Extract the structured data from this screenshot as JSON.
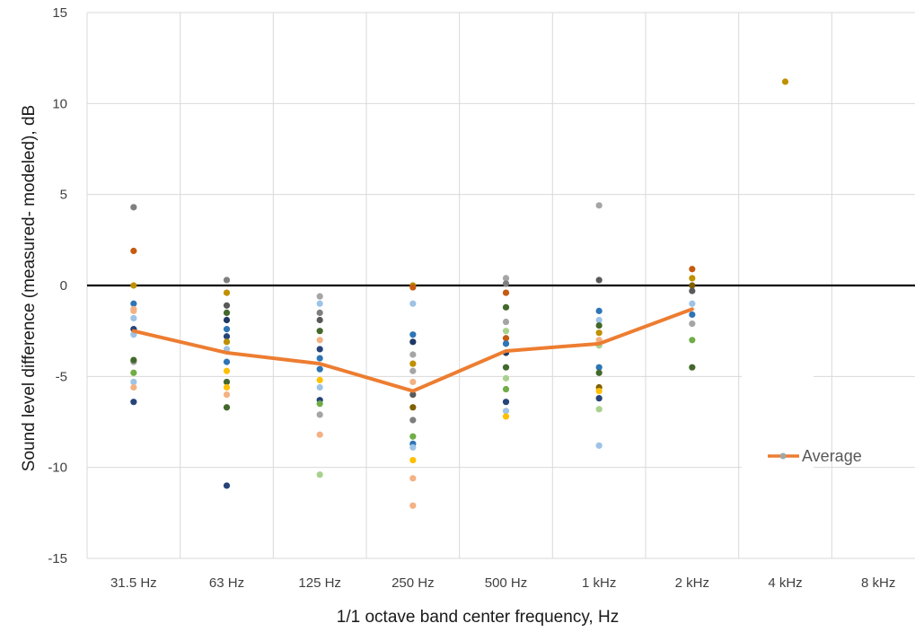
{
  "chart_data": {
    "type": "scatter",
    "xlabel": "1/1 octave band center frequency, Hz",
    "ylabel": "Sound level difference (measured- modeled), dB",
    "ylim": [
      -15,
      15
    ],
    "yticks": [
      "-15",
      "-10",
      "-5",
      "0",
      "5",
      "10",
      "15"
    ],
    "categories": [
      "31.5 Hz",
      "63 Hz",
      "125 Hz",
      "250 Hz",
      "500 Hz",
      "1 kHz",
      "2 kHz",
      "4 kHz",
      "8 kHz"
    ],
    "grid": true,
    "zero_line": true,
    "legend_position": "right",
    "average": {
      "name": "Average",
      "color": "#ED7D31",
      "values": [
        -2.5,
        -3.7,
        -4.3,
        -5.8,
        -3.6,
        -3.2,
        -1.3,
        null,
        null
      ]
    },
    "points": [
      {
        "x": "31.5 Hz",
        "y": 4.3,
        "color": "#7F7F7F"
      },
      {
        "x": "31.5 Hz",
        "y": 1.9,
        "color": "#C55A11"
      },
      {
        "x": "31.5 Hz",
        "y": 0.0,
        "color": "#BF9000"
      },
      {
        "x": "31.5 Hz",
        "y": -1.0,
        "color": "#2E75B6"
      },
      {
        "x": "31.5 Hz",
        "y": -1.3,
        "color": "#F4B183"
      },
      {
        "x": "31.5 Hz",
        "y": -1.4,
        "color": "#F4B183"
      },
      {
        "x": "31.5 Hz",
        "y": -1.8,
        "color": "#9DC3E6"
      },
      {
        "x": "31.5 Hz",
        "y": -2.4,
        "color": "#264478"
      },
      {
        "x": "31.5 Hz",
        "y": -2.7,
        "color": "#9DC3E6"
      },
      {
        "x": "31.5 Hz",
        "y": -4.2,
        "color": "#A5A5A5"
      },
      {
        "x": "31.5 Hz",
        "y": -4.1,
        "color": "#43682B"
      },
      {
        "x": "31.5 Hz",
        "y": -4.8,
        "color": "#70AD47"
      },
      {
        "x": "31.5 Hz",
        "y": -5.3,
        "color": "#9DC3E6"
      },
      {
        "x": "31.5 Hz",
        "y": -5.6,
        "color": "#F4B183"
      },
      {
        "x": "31.5 Hz",
        "y": -6.4,
        "color": "#264478"
      },
      {
        "x": "63 Hz",
        "y": 0.3,
        "color": "#7F7F7F"
      },
      {
        "x": "63 Hz",
        "y": -0.4,
        "color": "#BF9000"
      },
      {
        "x": "63 Hz",
        "y": -1.1,
        "color": "#595959"
      },
      {
        "x": "63 Hz",
        "y": -1.5,
        "color": "#43682B"
      },
      {
        "x": "63 Hz",
        "y": -1.9,
        "color": "#1F3864"
      },
      {
        "x": "63 Hz",
        "y": -2.4,
        "color": "#2E75B6"
      },
      {
        "x": "63 Hz",
        "y": -2.8,
        "color": "#264478"
      },
      {
        "x": "63 Hz",
        "y": -3.1,
        "color": "#BF9000"
      },
      {
        "x": "63 Hz",
        "y": -3.5,
        "color": "#9DC3E6"
      },
      {
        "x": "63 Hz",
        "y": -4.2,
        "color": "#2E75B6"
      },
      {
        "x": "63 Hz",
        "y": -4.7,
        "color": "#FFC000"
      },
      {
        "x": "63 Hz",
        "y": -5.3,
        "color": "#43682B"
      },
      {
        "x": "63 Hz",
        "y": -5.6,
        "color": "#FFC000"
      },
      {
        "x": "63 Hz",
        "y": -6.0,
        "color": "#F4B183"
      },
      {
        "x": "63 Hz",
        "y": -6.7,
        "color": "#43682B"
      },
      {
        "x": "63 Hz",
        "y": -11.0,
        "color": "#264478"
      },
      {
        "x": "125 Hz",
        "y": -0.6,
        "color": "#A5A5A5"
      },
      {
        "x": "125 Hz",
        "y": -1.0,
        "color": "#9DC3E6"
      },
      {
        "x": "125 Hz",
        "y": -1.5,
        "color": "#7F7F7F"
      },
      {
        "x": "125 Hz",
        "y": -1.9,
        "color": "#595959"
      },
      {
        "x": "125 Hz",
        "y": -2.5,
        "color": "#43682B"
      },
      {
        "x": "125 Hz",
        "y": -3.0,
        "color": "#F4B183"
      },
      {
        "x": "125 Hz",
        "y": -3.5,
        "color": "#264478"
      },
      {
        "x": "125 Hz",
        "y": -4.0,
        "color": "#2E75B6"
      },
      {
        "x": "125 Hz",
        "y": -4.6,
        "color": "#2E75B6"
      },
      {
        "x": "125 Hz",
        "y": -5.2,
        "color": "#FFC000"
      },
      {
        "x": "125 Hz",
        "y": -5.6,
        "color": "#9DC3E6"
      },
      {
        "x": "125 Hz",
        "y": -6.3,
        "color": "#264478"
      },
      {
        "x": "125 Hz",
        "y": -6.5,
        "color": "#70AD47"
      },
      {
        "x": "125 Hz",
        "y": -7.1,
        "color": "#A5A5A5"
      },
      {
        "x": "125 Hz",
        "y": -8.2,
        "color": "#F4B183"
      },
      {
        "x": "125 Hz",
        "y": -10.4,
        "color": "#A9D18E"
      },
      {
        "x": "250 Hz",
        "y": 0.0,
        "color": "#BF9000"
      },
      {
        "x": "250 Hz",
        "y": -0.1,
        "color": "#C55A11"
      },
      {
        "x": "250 Hz",
        "y": -1.0,
        "color": "#9DC3E6"
      },
      {
        "x": "250 Hz",
        "y": -2.7,
        "color": "#2E75B6"
      },
      {
        "x": "250 Hz",
        "y": -3.1,
        "color": "#1F3864"
      },
      {
        "x": "250 Hz",
        "y": -3.8,
        "color": "#A5A5A5"
      },
      {
        "x": "250 Hz",
        "y": -4.3,
        "color": "#BF9000"
      },
      {
        "x": "250 Hz",
        "y": -4.7,
        "color": "#A5A5A5"
      },
      {
        "x": "250 Hz",
        "y": -5.3,
        "color": "#F4B183"
      },
      {
        "x": "250 Hz",
        "y": -6.0,
        "color": "#595959"
      },
      {
        "x": "250 Hz",
        "y": -6.7,
        "color": "#806000"
      },
      {
        "x": "250 Hz",
        "y": -7.4,
        "color": "#7F7F7F"
      },
      {
        "x": "250 Hz",
        "y": -8.3,
        "color": "#70AD47"
      },
      {
        "x": "250 Hz",
        "y": -8.7,
        "color": "#2E75B6"
      },
      {
        "x": "250 Hz",
        "y": -8.9,
        "color": "#9DC3E6"
      },
      {
        "x": "250 Hz",
        "y": -9.6,
        "color": "#FFC000"
      },
      {
        "x": "250 Hz",
        "y": -10.6,
        "color": "#F4B183"
      },
      {
        "x": "250 Hz",
        "y": -12.1,
        "color": "#F4B183"
      },
      {
        "x": "500 Hz",
        "y": 0.4,
        "color": "#A5A5A5"
      },
      {
        "x": "500 Hz",
        "y": 0.1,
        "color": "#7F7F7F"
      },
      {
        "x": "500 Hz",
        "y": -0.4,
        "color": "#C55A11"
      },
      {
        "x": "500 Hz",
        "y": -1.2,
        "color": "#43682B"
      },
      {
        "x": "500 Hz",
        "y": -2.0,
        "color": "#A5A5A5"
      },
      {
        "x": "500 Hz",
        "y": -2.5,
        "color": "#A9D18E"
      },
      {
        "x": "500 Hz",
        "y": -2.9,
        "color": "#C55A11"
      },
      {
        "x": "500 Hz",
        "y": -3.2,
        "color": "#2E75B6"
      },
      {
        "x": "500 Hz",
        "y": -3.7,
        "color": "#1F3864"
      },
      {
        "x": "500 Hz",
        "y": -4.5,
        "color": "#43682B"
      },
      {
        "x": "500 Hz",
        "y": -5.1,
        "color": "#A9D18E"
      },
      {
        "x": "500 Hz",
        "y": -5.7,
        "color": "#70AD47"
      },
      {
        "x": "500 Hz",
        "y": -6.4,
        "color": "#264478"
      },
      {
        "x": "500 Hz",
        "y": -6.9,
        "color": "#9DC3E6"
      },
      {
        "x": "500 Hz",
        "y": -7.2,
        "color": "#FFC000"
      },
      {
        "x": "1 kHz",
        "y": 4.4,
        "color": "#A5A5A5"
      },
      {
        "x": "1 kHz",
        "y": 0.3,
        "color": "#595959"
      },
      {
        "x": "1 kHz",
        "y": -1.4,
        "color": "#2E75B6"
      },
      {
        "x": "1 kHz",
        "y": -1.9,
        "color": "#9DC3E6"
      },
      {
        "x": "1 kHz",
        "y": -2.2,
        "color": "#43682B"
      },
      {
        "x": "1 kHz",
        "y": -2.6,
        "color": "#BF9000"
      },
      {
        "x": "1 kHz",
        "y": -3.0,
        "color": "#F4B183"
      },
      {
        "x": "1 kHz",
        "y": -3.3,
        "color": "#A9D18E"
      },
      {
        "x": "1 kHz",
        "y": -4.5,
        "color": "#2E75B6"
      },
      {
        "x": "1 kHz",
        "y": -4.8,
        "color": "#43682B"
      },
      {
        "x": "1 kHz",
        "y": -5.6,
        "color": "#806000"
      },
      {
        "x": "1 kHz",
        "y": -5.8,
        "color": "#FFC000"
      },
      {
        "x": "1 kHz",
        "y": -6.2,
        "color": "#264478"
      },
      {
        "x": "1 kHz",
        "y": -6.8,
        "color": "#A9D18E"
      },
      {
        "x": "1 kHz",
        "y": -8.8,
        "color": "#9DC3E6"
      },
      {
        "x": "2 kHz",
        "y": 0.9,
        "color": "#C55A11"
      },
      {
        "x": "2 kHz",
        "y": 0.4,
        "color": "#BF9000"
      },
      {
        "x": "2 kHz",
        "y": 0.0,
        "color": "#806000"
      },
      {
        "x": "2 kHz",
        "y": -0.3,
        "color": "#595959"
      },
      {
        "x": "2 kHz",
        "y": -1.0,
        "color": "#9DC3E6"
      },
      {
        "x": "2 kHz",
        "y": -1.6,
        "color": "#2E75B6"
      },
      {
        "x": "2 kHz",
        "y": -2.1,
        "color": "#A5A5A5"
      },
      {
        "x": "2 kHz",
        "y": -3.0,
        "color": "#70AD47"
      },
      {
        "x": "2 kHz",
        "y": -4.5,
        "color": "#43682B"
      },
      {
        "x": "4 kHz",
        "y": 11.2,
        "color": "#BF9000"
      }
    ]
  }
}
